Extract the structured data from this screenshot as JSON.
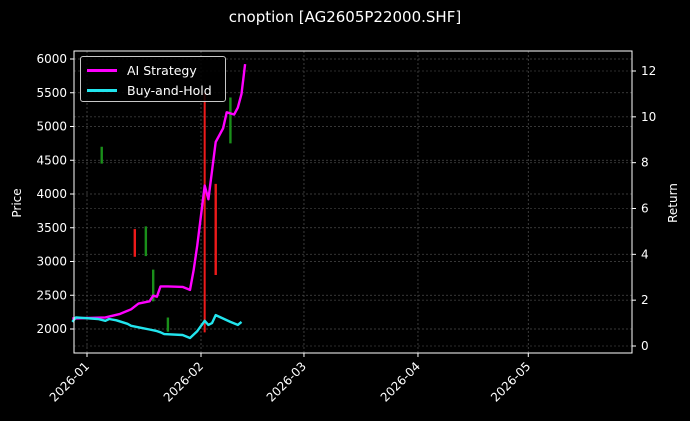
{
  "title": "cnoption [AG2605P22000.SHF]",
  "colors": {
    "background": "#000000",
    "ai_strategy": "#ff00ff",
    "buy_and_hold": "#22e5ee",
    "candle_up": "#1a8f1a",
    "candle_down": "#ee1a1a",
    "grid": "#555555",
    "axis": "#ffffff"
  },
  "legend": {
    "items": [
      {
        "label": "AI Strategy",
        "color": "#ff00ff"
      },
      {
        "label": "Buy-and-Hold",
        "color": "#22e5ee"
      }
    ]
  },
  "chart_data": {
    "type": "line",
    "title": "cnoption [AG2605P22000.SHF]",
    "xlabel": "",
    "ylabel": "Price",
    "y2label": "Return",
    "x_ticks": [
      "2026-01",
      "2026-02",
      "2026-03",
      "2026-04",
      "2026-05"
    ],
    "y_ticks": [
      2000,
      2500,
      3000,
      3500,
      4000,
      4500,
      5000,
      5500,
      6000
    ],
    "y2_ticks": [
      0,
      2,
      4,
      6,
      8,
      10,
      12
    ],
    "ylim": [
      1830,
      6100
    ],
    "y2lim": [
      -0.2,
      12.8
    ],
    "xlim": [
      "2025-12-28",
      "2026-05-28"
    ],
    "grid": true,
    "legend_position": "upper left",
    "series": [
      {
        "name": "AI Strategy",
        "axis": "return",
        "color": "#ff00ff",
        "x": [
          "2025-12-28",
          "2026-01-06",
          "2026-01-10",
          "2026-01-13",
          "2026-01-15",
          "2026-01-18",
          "2026-01-19",
          "2026-01-20",
          "2026-01-21",
          "2026-01-23",
          "2026-01-27",
          "2026-01-29",
          "2026-01-30",
          "2026-01-31",
          "2026-02-02",
          "2026-02-03",
          "2026-02-05",
          "2026-02-07",
          "2026-02-08",
          "2026-02-10",
          "2026-02-11",
          "2026-02-12",
          "2026-02-13"
        ],
        "values": [
          1.2,
          1.25,
          1.4,
          1.6,
          1.85,
          1.95,
          2.2,
          2.15,
          2.6,
          2.6,
          2.58,
          2.45,
          3.3,
          4.4,
          7.0,
          6.4,
          8.9,
          9.5,
          10.2,
          10.1,
          10.4,
          11.0,
          12.3
        ]
      },
      {
        "name": "Buy-and-Hold",
        "axis": "return",
        "color": "#22e5ee",
        "x": [
          "2025-12-28",
          "2025-12-29",
          "2026-01-04",
          "2026-01-06",
          "2026-01-07",
          "2026-01-09",
          "2026-01-12",
          "2026-01-13",
          "2026-01-16",
          "2026-01-18",
          "2026-01-20",
          "2026-01-21",
          "2026-01-22",
          "2026-01-27",
          "2026-01-29",
          "2026-01-31",
          "2026-02-02",
          "2026-02-03",
          "2026-02-04",
          "2026-02-05",
          "2026-02-09",
          "2026-02-11",
          "2026-02-12"
        ],
        "values": [
          1.05,
          1.25,
          1.18,
          1.1,
          1.18,
          1.12,
          0.97,
          0.88,
          0.78,
          0.72,
          0.65,
          0.6,
          0.52,
          0.48,
          0.35,
          0.65,
          1.1,
          0.92,
          1.0,
          1.35,
          1.05,
          0.92,
          1.05
        ]
      }
    ],
    "candles": [
      {
        "date": "2026-01-05",
        "open": 4700,
        "close": 4450,
        "high": 4700,
        "low": 4450,
        "color": "up"
      },
      {
        "date": "2026-01-14",
        "open": 3480,
        "close": 3070,
        "high": 3480,
        "low": 3070,
        "color": "down"
      },
      {
        "date": "2026-01-17",
        "open": 3520,
        "close": 3080,
        "high": 3520,
        "low": 3080,
        "color": "up"
      },
      {
        "date": "2026-01-19",
        "open": 2880,
        "close": 2410,
        "high": 2880,
        "low": 2410,
        "color": "up"
      },
      {
        "date": "2026-01-23",
        "open": 2170,
        "close": 1960,
        "high": 2170,
        "low": 1960,
        "color": "up"
      },
      {
        "date": "2026-02-02",
        "open": 5500,
        "close": 1950,
        "high": 5500,
        "low": 1950,
        "color": "down"
      },
      {
        "date": "2026-02-05",
        "open": 4150,
        "close": 2800,
        "high": 4150,
        "low": 2800,
        "color": "down"
      },
      {
        "date": "2026-02-09",
        "open": 5430,
        "close": 4750,
        "high": 5430,
        "low": 4750,
        "color": "up"
      }
    ]
  }
}
